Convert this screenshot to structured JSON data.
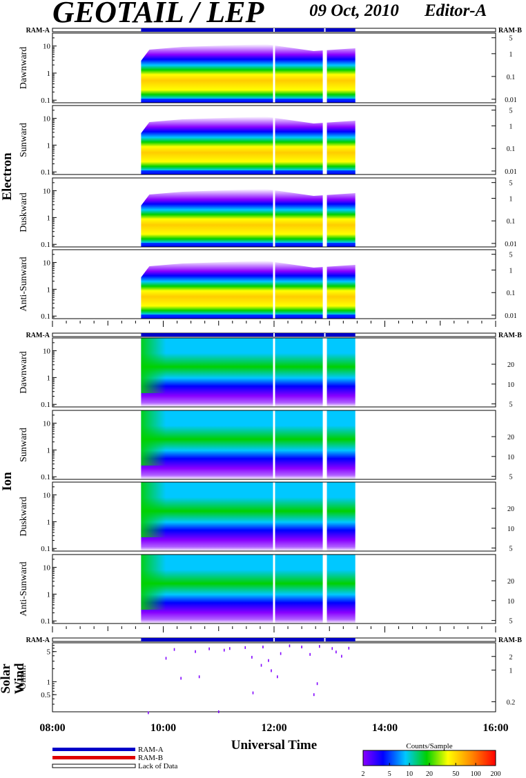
{
  "header": {
    "title": "GEOTAIL / LEP",
    "date": "09 Oct, 2010",
    "editor": "Editor-A"
  },
  "legend": {
    "ram_a": "RAM-A",
    "ram_b": "RAM-B",
    "lack": "Lack of Data",
    "ram_a_color": "#0000c8",
    "ram_b_color": "#e00000"
  },
  "colorbar": {
    "title": "Counts/Sample",
    "ticks": [
      "2",
      "5",
      "10",
      "20",
      "50",
      "100",
      "200"
    ],
    "values": [
      2,
      5,
      10,
      20,
      50,
      100,
      200
    ],
    "scale": "log"
  },
  "chart_data": {
    "type": "heatmap",
    "x_axis": {
      "label": "Universal Time",
      "ticks": [
        "08:00",
        "10:00",
        "12:00",
        "14:00",
        "16:00"
      ],
      "range": [
        "08:00",
        "16:00"
      ]
    },
    "data_coverage": {
      "start": "09:36",
      "end": "13:28",
      "gaps": [
        "12:00",
        "12:55"
      ]
    },
    "ram_bar": {
      "left_label": "RAM-A",
      "right_label": "RAM-B"
    },
    "groups": [
      {
        "name": "Electron",
        "panels": [
          {
            "label": "Dawnward",
            "yticks": [
              "10",
              "1",
              "0.1"
            ],
            "right_ticks": [
              "5",
              "1",
              "0.1",
              "0.01"
            ]
          },
          {
            "label": "Sunward",
            "yticks": [
              "10",
              "1",
              "0.1"
            ],
            "right_ticks": [
              "5",
              "1",
              "0.1",
              "0.01"
            ]
          },
          {
            "label": "Duskward",
            "yticks": [
              "10",
              "1",
              "0.1"
            ],
            "right_ticks": [
              "5",
              "1",
              "0.1",
              "0.01"
            ]
          },
          {
            "label": "Anti-Sunward",
            "yticks": [
              "10",
              "1",
              "0.1"
            ],
            "right_ticks": [
              "5",
              "1",
              "0.1",
              "0.01"
            ]
          }
        ]
      },
      {
        "name": "Ion",
        "panels": [
          {
            "label": "Dawnward",
            "yticks": [
              "10",
              "1",
              "0.1"
            ],
            "right_ticks": [
              "20",
              "10",
              "5"
            ]
          },
          {
            "label": "Sunward",
            "yticks": [
              "10",
              "1",
              "0.1"
            ],
            "right_ticks": [
              "20",
              "10",
              "5"
            ]
          },
          {
            "label": "Duskward",
            "yticks": [
              "10",
              "1",
              "0.1"
            ],
            "right_ticks": [
              "20",
              "10",
              "5"
            ]
          },
          {
            "label": "Anti-Sunward",
            "yticks": [
              "10",
              "1",
              "0.1"
            ],
            "right_ticks": [
              "20",
              "10",
              "5"
            ]
          }
        ]
      },
      {
        "name": "Solar Wind",
        "panels": [
          {
            "label": "Omni.",
            "yticks": [
              "5",
              "1",
              "0.5"
            ],
            "right_ticks": [
              "2",
              "1",
              "0.2"
            ]
          }
        ]
      }
    ],
    "solar_wind_points": [
      [
        9.73,
        0.19
      ],
      [
        10.05,
        3.5
      ],
      [
        10.2,
        5.6
      ],
      [
        10.32,
        1.2
      ],
      [
        10.58,
        5.0
      ],
      [
        10.65,
        1.3
      ],
      [
        10.83,
        5.8
      ],
      [
        11.0,
        0.2
      ],
      [
        11.1,
        5.4
      ],
      [
        11.2,
        5.9
      ],
      [
        11.48,
        6.2
      ],
      [
        11.6,
        3.7
      ],
      [
        11.62,
        0.55
      ],
      [
        11.77,
        2.4
      ],
      [
        11.8,
        6.4
      ],
      [
        11.9,
        3.1
      ],
      [
        11.95,
        1.8
      ],
      [
        12.06,
        1.3
      ],
      [
        12.12,
        4.5
      ],
      [
        12.28,
        6.8
      ],
      [
        12.5,
        6.4
      ],
      [
        12.65,
        4.3
      ],
      [
        12.72,
        0.5
      ],
      [
        12.78,
        0.9
      ],
      [
        12.82,
        6.6
      ],
      [
        13.05,
        5.9
      ],
      [
        13.12,
        4.9
      ],
      [
        13.22,
        3.9
      ],
      [
        13.35,
        6.0
      ]
    ]
  }
}
